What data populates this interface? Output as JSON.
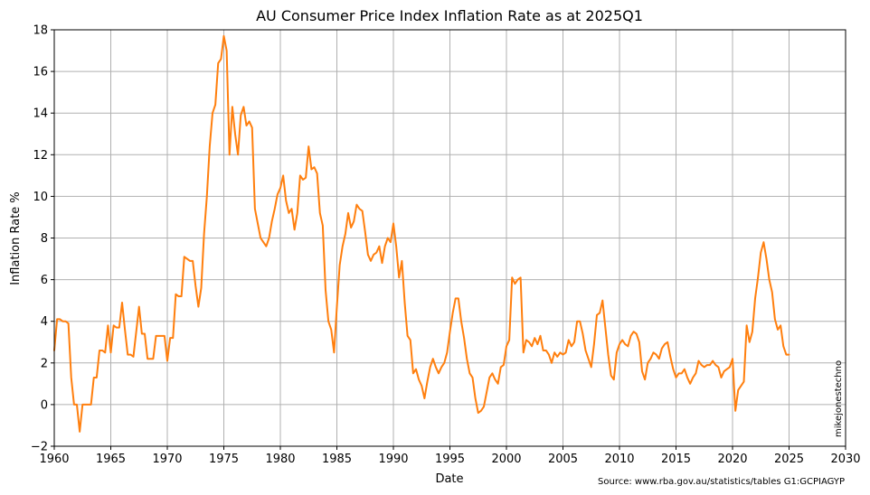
{
  "chart_data": {
    "type": "line",
    "title": "AU Consumer Price Index Inflation Rate as at 2025Q1",
    "xlabel": "Date",
    "ylabel": "Inflation Rate %",
    "xlim": [
      1960,
      2030
    ],
    "ylim": [
      -2,
      18
    ],
    "xticks": [
      1960,
      1965,
      1970,
      1975,
      1980,
      1985,
      1990,
      1995,
      2000,
      2005,
      2010,
      2015,
      2020,
      2025,
      2030
    ],
    "yticks": [
      -2,
      0,
      2,
      4,
      6,
      8,
      10,
      12,
      14,
      16,
      18
    ],
    "grid": true,
    "source": "Source: www.rba.gov.au/statistics/tables G1:GCPIAGYP",
    "watermark": "mikejonestechno",
    "series": [
      {
        "name": "Inflation Rate %",
        "color": "#ff7f0e",
        "x": [
          1960.0,
          1960.25,
          1960.5,
          1960.75,
          1961.0,
          1961.25,
          1961.5,
          1961.75,
          1962.0,
          1962.25,
          1962.5,
          1962.75,
          1963.0,
          1963.25,
          1963.5,
          1963.75,
          1964.0,
          1964.25,
          1964.5,
          1964.75,
          1965.0,
          1965.25,
          1965.5,
          1965.75,
          1966.0,
          1966.25,
          1966.5,
          1966.75,
          1967.0,
          1967.25,
          1967.5,
          1967.75,
          1968.0,
          1968.25,
          1968.5,
          1968.75,
          1969.0,
          1969.25,
          1969.5,
          1969.75,
          1970.0,
          1970.25,
          1970.5,
          1970.75,
          1971.0,
          1971.25,
          1971.5,
          1971.75,
          1972.0,
          1972.25,
          1972.5,
          1972.75,
          1973.0,
          1973.25,
          1973.5,
          1973.75,
          1974.0,
          1974.25,
          1974.5,
          1974.75,
          1975.0,
          1975.25,
          1975.5,
          1975.75,
          1976.0,
          1976.25,
          1976.5,
          1976.75,
          1977.0,
          1977.25,
          1977.5,
          1977.75,
          1978.0,
          1978.25,
          1978.5,
          1978.75,
          1979.0,
          1979.25,
          1979.5,
          1979.75,
          1980.0,
          1980.25,
          1980.5,
          1980.75,
          1981.0,
          1981.25,
          1981.5,
          1981.75,
          1982.0,
          1982.25,
          1982.5,
          1982.75,
          1983.0,
          1983.25,
          1983.5,
          1983.75,
          1984.0,
          1984.25,
          1984.5,
          1984.75,
          1985.0,
          1985.25,
          1985.5,
          1985.75,
          1986.0,
          1986.25,
          1986.5,
          1986.75,
          1987.0,
          1987.25,
          1987.5,
          1987.75,
          1988.0,
          1988.25,
          1988.5,
          1988.75,
          1989.0,
          1989.25,
          1989.5,
          1989.75,
          1990.0,
          1990.25,
          1990.5,
          1990.75,
          1991.0,
          1991.25,
          1991.5,
          1991.75,
          1992.0,
          1992.25,
          1992.5,
          1992.75,
          1993.0,
          1993.25,
          1993.5,
          1993.75,
          1994.0,
          1994.25,
          1994.5,
          1994.75,
          1995.0,
          1995.25,
          1995.5,
          1995.75,
          1996.0,
          1996.25,
          1996.5,
          1996.75,
          1997.0,
          1997.25,
          1997.5,
          1997.75,
          1998.0,
          1998.25,
          1998.5,
          1998.75,
          1999.0,
          1999.25,
          1999.5,
          1999.75,
          2000.0,
          2000.25,
          2000.5,
          2000.75,
          2001.0,
          2001.25,
          2001.5,
          2001.75,
          2002.0,
          2002.25,
          2002.5,
          2002.75,
          2003.0,
          2003.25,
          2003.5,
          2003.75,
          2004.0,
          2004.25,
          2004.5,
          2004.75,
          2005.0,
          2005.25,
          2005.5,
          2005.75,
          2006.0,
          2006.25,
          2006.5,
          2006.75,
          2007.0,
          2007.25,
          2007.5,
          2007.75,
          2008.0,
          2008.25,
          2008.5,
          2008.75,
          2009.0,
          2009.25,
          2009.5,
          2009.75,
          2010.0,
          2010.25,
          2010.5,
          2010.75,
          2011.0,
          2011.25,
          2011.5,
          2011.75,
          2012.0,
          2012.25,
          2012.5,
          2012.75,
          2013.0,
          2013.25,
          2013.5,
          2013.75,
          2014.0,
          2014.25,
          2014.5,
          2014.75,
          2015.0,
          2015.25,
          2015.5,
          2015.75,
          2016.0,
          2016.25,
          2016.5,
          2016.75,
          2017.0,
          2017.25,
          2017.5,
          2017.75,
          2018.0,
          2018.25,
          2018.5,
          2018.75,
          2019.0,
          2019.25,
          2019.5,
          2019.75,
          2020.0,
          2020.25,
          2020.5,
          2020.75,
          2021.0,
          2021.25,
          2021.5,
          2021.75,
          2022.0,
          2022.25,
          2022.5,
          2022.75,
          2023.0,
          2023.25,
          2023.5,
          2023.75,
          2024.0,
          2024.25,
          2024.5,
          2024.75,
          2025.0
        ],
        "y": [
          2.6,
          4.1,
          4.1,
          4.0,
          4.0,
          3.9,
          1.3,
          0.0,
          0.0,
          -1.3,
          0.0,
          0.0,
          0.0,
          0.0,
          1.3,
          1.3,
          2.6,
          2.6,
          2.5,
          3.8,
          2.5,
          3.8,
          3.7,
          3.7,
          4.9,
          3.6,
          2.4,
          2.4,
          2.3,
          3.5,
          4.7,
          3.4,
          3.4,
          2.2,
          2.2,
          2.2,
          3.3,
          3.3,
          3.3,
          3.3,
          2.1,
          3.2,
          3.2,
          5.3,
          5.2,
          5.2,
          7.1,
          7.0,
          6.9,
          6.9,
          5.7,
          4.7,
          5.6,
          8.2,
          10.0,
          12.4,
          14.0,
          14.4,
          16.4,
          16.6,
          17.7,
          17.0,
          12.0,
          14.3,
          13.0,
          12.0,
          13.9,
          14.3,
          13.4,
          13.6,
          13.3,
          9.4,
          8.7,
          8.0,
          7.8,
          7.6,
          8.0,
          8.8,
          9.4,
          10.1,
          10.4,
          11.0,
          9.8,
          9.2,
          9.4,
          8.4,
          9.2,
          11.0,
          10.8,
          10.9,
          12.4,
          11.3,
          11.4,
          11.1,
          9.2,
          8.6,
          5.5,
          4.0,
          3.6,
          2.5,
          4.7,
          6.7,
          7.6,
          8.2,
          9.2,
          8.5,
          8.8,
          9.6,
          9.4,
          9.3,
          8.3,
          7.2,
          6.9,
          7.2,
          7.3,
          7.6,
          6.8,
          7.6,
          8.0,
          7.8,
          8.7,
          7.6,
          6.1,
          6.9,
          4.9,
          3.3,
          3.1,
          1.5,
          1.7,
          1.2,
          0.9,
          0.3,
          1.1,
          1.8,
          2.2,
          1.8,
          1.5,
          1.8,
          2.0,
          2.5,
          3.5,
          4.4,
          5.1,
          5.1,
          4.0,
          3.2,
          2.2,
          1.5,
          1.3,
          0.3,
          -0.4,
          -0.3,
          -0.1,
          0.6,
          1.3,
          1.5,
          1.2,
          1.0,
          1.8,
          1.9,
          2.8,
          3.1,
          6.1,
          5.8,
          6.0,
          6.1,
          2.5,
          3.1,
          3.0,
          2.8,
          3.2,
          2.9,
          3.3,
          2.6,
          2.6,
          2.4,
          2.0,
          2.5,
          2.3,
          2.5,
          2.4,
          2.5,
          3.1,
          2.8,
          3.0,
          4.0,
          4.0,
          3.4,
          2.6,
          2.2,
          1.8,
          2.9,
          4.3,
          4.4,
          5.0,
          3.7,
          2.4,
          1.4,
          1.2,
          2.5,
          2.9,
          3.1,
          2.9,
          2.8,
          3.3,
          3.5,
          3.4,
          3.0,
          1.6,
          1.2,
          2.0,
          2.2,
          2.5,
          2.4,
          2.2,
          2.7,
          2.9,
          3.0,
          2.3,
          1.7,
          1.3,
          1.5,
          1.5,
          1.7,
          1.3,
          1.0,
          1.3,
          1.5,
          2.1,
          1.9,
          1.8,
          1.9,
          1.9,
          2.1,
          1.9,
          1.8,
          1.3,
          1.6,
          1.7,
          1.8,
          2.2,
          -0.3,
          0.7,
          0.9,
          1.1,
          3.8,
          3.0,
          3.5,
          5.1,
          6.1,
          7.3,
          7.8,
          7.0,
          6.0,
          5.4,
          4.1,
          3.6,
          3.8,
          2.8,
          2.4,
          2.4
        ]
      }
    ]
  }
}
